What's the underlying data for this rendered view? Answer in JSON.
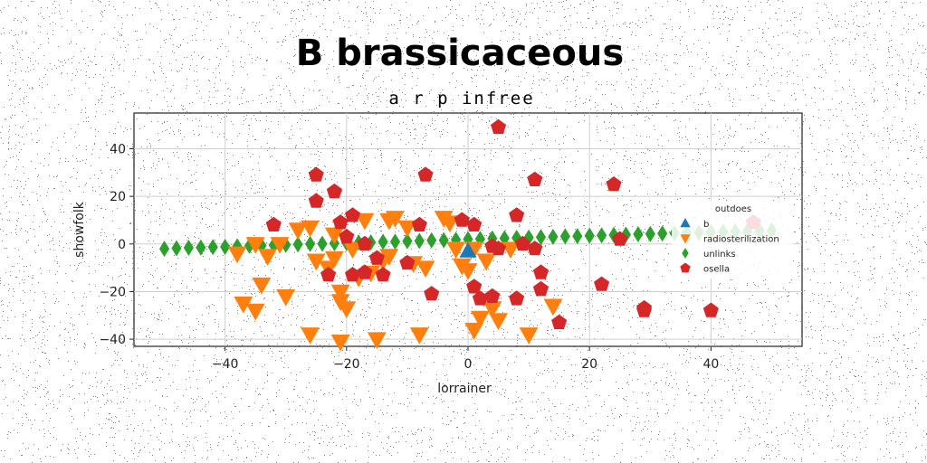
{
  "chart_data": {
    "type": "scatter",
    "title": "B brassicaceous",
    "subtitle": "a r p infree",
    "xlabel": "lorrainer",
    "ylabel": "showfolk",
    "xlim": [
      -55,
      55
    ],
    "ylim": [
      -43,
      55
    ],
    "xticks": [
      -40,
      -20,
      0,
      20,
      40
    ],
    "yticks": [
      -40,
      -20,
      0,
      20,
      40
    ],
    "grid": true,
    "legend": {
      "title": "outdoes",
      "placement": "right"
    },
    "colors": {
      "b": "#1f77b4",
      "radiosterilization": "#ff7f0e",
      "unlinks": "#2ca02c",
      "osella": "#d62728"
    },
    "series": [
      {
        "name": "b",
        "marker": "triangle-up",
        "points": [
          [
            0,
            -3
          ]
        ]
      },
      {
        "name": "radiosterilization",
        "marker": "triangle-down",
        "points": [
          [
            -37,
            -25
          ],
          [
            -35,
            -28
          ],
          [
            -34,
            -17
          ],
          [
            -30,
            -22
          ],
          [
            -33,
            -5
          ],
          [
            -31,
            0
          ],
          [
            -28,
            6
          ],
          [
            -26,
            7
          ],
          [
            -25,
            -7
          ],
          [
            -23,
            -10
          ],
          [
            -22,
            -6
          ],
          [
            -21,
            -24
          ],
          [
            -21,
            -20
          ],
          [
            -20,
            -27
          ],
          [
            -19,
            -2
          ],
          [
            -17,
            10
          ],
          [
            -16,
            -12
          ],
          [
            -14,
            -7
          ],
          [
            -13,
            10
          ],
          [
            -12,
            11
          ],
          [
            -10,
            7
          ],
          [
            -9,
            -8
          ],
          [
            -7,
            -10
          ],
          [
            -4,
            11
          ],
          [
            -3,
            9
          ],
          [
            -2,
            -2
          ],
          [
            -1,
            -9
          ],
          [
            0,
            -11
          ],
          [
            1,
            -2
          ],
          [
            2,
            -31
          ],
          [
            1,
            -36
          ],
          [
            3,
            -7
          ],
          [
            4,
            -27
          ],
          [
            5,
            -32
          ],
          [
            7,
            -2
          ],
          [
            10,
            -38
          ],
          [
            14,
            -26
          ],
          [
            -26,
            -38
          ],
          [
            -21,
            -41
          ],
          [
            -15,
            -40
          ],
          [
            -8,
            -38
          ],
          [
            -13,
            -5
          ],
          [
            -38,
            -4
          ],
          [
            -35,
            0
          ],
          [
            -22,
            4
          ],
          [
            -18,
            -14
          ]
        ]
      },
      {
        "name": "unlinks",
        "marker": "diamond",
        "points": [
          [
            -50,
            -2
          ],
          [
            -48,
            -1.8
          ],
          [
            -46,
            -1.6
          ],
          [
            -44,
            -1.5
          ],
          [
            -42,
            -1.3
          ],
          [
            -40,
            -1.2
          ],
          [
            -38,
            -1
          ],
          [
            -36,
            -0.8
          ],
          [
            -34,
            -0.7
          ],
          [
            -32,
            -0.5
          ],
          [
            -30,
            -0.4
          ],
          [
            -28,
            -0.2
          ],
          [
            -26,
            0
          ],
          [
            -24,
            0.1
          ],
          [
            -22,
            0.3
          ],
          [
            -20,
            0.4
          ],
          [
            -18,
            0.6
          ],
          [
            -16,
            0.7
          ],
          [
            -14,
            0.9
          ],
          [
            -12,
            1
          ],
          [
            -10,
            1.2
          ],
          [
            -8,
            1.3
          ],
          [
            -6,
            1.5
          ],
          [
            -4,
            1.6
          ],
          [
            -2,
            1.8
          ],
          [
            0,
            2
          ],
          [
            2,
            2.1
          ],
          [
            4,
            2.3
          ],
          [
            6,
            2.4
          ],
          [
            8,
            2.6
          ],
          [
            10,
            2.7
          ],
          [
            12,
            2.9
          ],
          [
            14,
            3
          ],
          [
            16,
            3.2
          ],
          [
            18,
            3.3
          ],
          [
            20,
            3.5
          ],
          [
            22,
            3.6
          ],
          [
            24,
            3.8
          ],
          [
            26,
            3.9
          ],
          [
            28,
            4.1
          ],
          [
            30,
            4.2
          ],
          [
            32,
            4.4
          ],
          [
            34,
            4.5
          ],
          [
            36,
            4.7
          ],
          [
            38,
            4.8
          ],
          [
            40,
            5
          ],
          [
            42,
            5.1
          ],
          [
            44,
            5.3
          ],
          [
            46,
            5.4
          ],
          [
            48,
            5.6
          ],
          [
            50,
            5.7
          ]
        ]
      },
      {
        "name": "osella",
        "marker": "pentagon",
        "points": [
          [
            5,
            49
          ],
          [
            11,
            27
          ],
          [
            24,
            25
          ],
          [
            -25,
            29
          ],
          [
            -7,
            29
          ],
          [
            -22,
            22
          ],
          [
            -25,
            18
          ],
          [
            8,
            12
          ],
          [
            -21,
            9
          ],
          [
            -32,
            8
          ],
          [
            -8,
            8
          ],
          [
            -1,
            10
          ],
          [
            1,
            8
          ],
          [
            -19,
            12
          ],
          [
            -20,
            3
          ],
          [
            -17,
            0
          ],
          [
            -10,
            -8
          ],
          [
            -15,
            -6
          ],
          [
            -17,
            -12
          ],
          [
            -19,
            -13
          ],
          [
            -14,
            -13
          ],
          [
            -23,
            -13
          ],
          [
            -6,
            -21
          ],
          [
            1,
            -18
          ],
          [
            2,
            -23
          ],
          [
            4,
            -22
          ],
          [
            8,
            -23
          ],
          [
            12,
            -12
          ],
          [
            12,
            -19
          ],
          [
            15,
            -33
          ],
          [
            22,
            -17
          ],
          [
            25,
            2
          ],
          [
            29,
            -27
          ],
          [
            29,
            -28
          ],
          [
            40,
            -28
          ],
          [
            47,
            9
          ],
          [
            4,
            -1
          ],
          [
            9,
            0
          ],
          [
            5,
            -2
          ],
          [
            11,
            -2
          ]
        ]
      }
    ]
  }
}
